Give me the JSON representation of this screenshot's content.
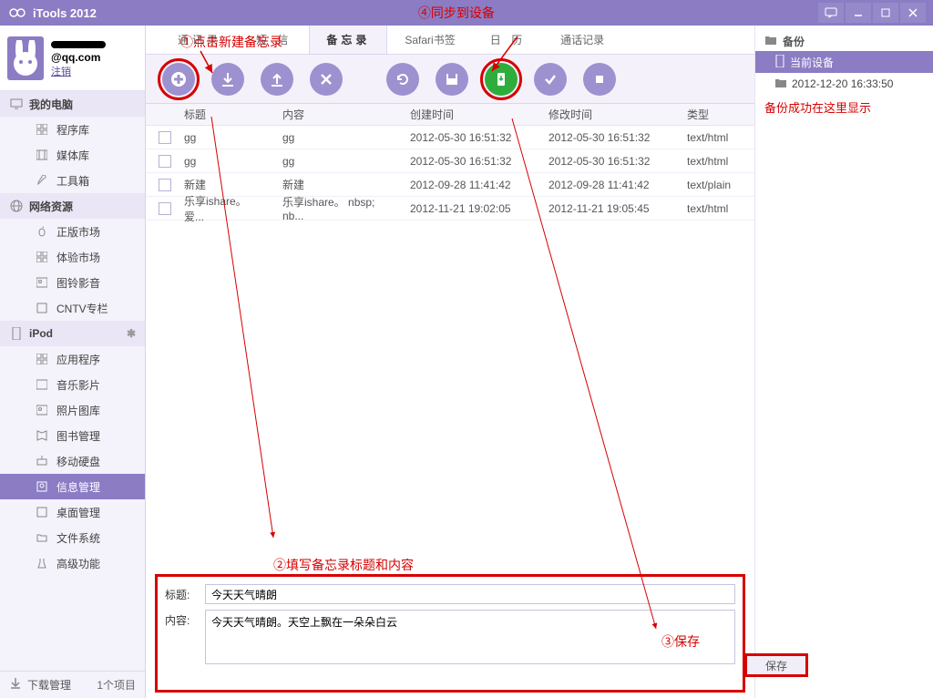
{
  "titlebar": {
    "app_name": "iTools 2012",
    "annot_sync": "④同步到设备"
  },
  "annotations": {
    "step1": "①点击新建备忘录",
    "step2": "②填写备忘录标题和内容",
    "step3": "③保存"
  },
  "user": {
    "email_suffix": "@qq.com",
    "logout": "注销"
  },
  "sidebar": {
    "computer_hdr": "我的电脑",
    "computer": [
      {
        "label": "程序库"
      },
      {
        "label": "媒体库"
      },
      {
        "label": "工具箱"
      }
    ],
    "net_hdr": "网络资源",
    "net": [
      {
        "label": "正版市场"
      },
      {
        "label": "体验市场"
      },
      {
        "label": "图铃影音"
      },
      {
        "label": "CNTV专栏"
      }
    ],
    "ipod_hdr": "iPod",
    "ipod": [
      {
        "label": "应用程序"
      },
      {
        "label": "音乐影片"
      },
      {
        "label": "照片图库"
      },
      {
        "label": "图书管理"
      },
      {
        "label": "移动硬盘"
      },
      {
        "label": "信息管理"
      },
      {
        "label": "桌面管理"
      },
      {
        "label": "文件系统"
      },
      {
        "label": "高级功能"
      }
    ],
    "footer": {
      "label": "下载管理",
      "count": "1个项目"
    }
  },
  "tabs": [
    {
      "label": "通讯录"
    },
    {
      "label": "短 信"
    },
    {
      "label": "备忘录"
    },
    {
      "label": "Safari书签"
    },
    {
      "label": "日 历"
    },
    {
      "label": "通话记录"
    }
  ],
  "table": {
    "headers": [
      "标题",
      "内容",
      "创建时间",
      "修改时间",
      "类型"
    ],
    "rows": [
      {
        "title": "gg",
        "content": "gg",
        "created": "2012-05-30 16:51:32",
        "modified": "2012-05-30 16:51:32",
        "type": "text/html"
      },
      {
        "title": "gg",
        "content": "gg",
        "created": "2012-05-30 16:51:32",
        "modified": "2012-05-30 16:51:32",
        "type": "text/html"
      },
      {
        "title": "新建",
        "content": "新建",
        "created": "2012-09-28 11:41:42",
        "modified": "2012-09-28 11:41:42",
        "type": "text/plain"
      },
      {
        "title": "乐享ishare。　爱...",
        "content": "乐享ishare。 nbsp; nb...",
        "created": "2012-11-21 19:02:05",
        "modified": "2012-11-21 19:05:45",
        "type": "text/html"
      }
    ]
  },
  "editor": {
    "title_label": "标题:",
    "content_label": "内容:",
    "title_value": "今天天气晴朗",
    "content_value": "今天天气晴朗。天空上飘在一朵朵白云",
    "save_label": "保存"
  },
  "right": {
    "header": "备份",
    "current": "当前设备",
    "backup_item": "2012-12-20 16:33:50",
    "success_text": "备份成功在这里显示"
  },
  "colors": {
    "accent": "#8b7cc4",
    "annot_red": "#d60000",
    "green": "#2ead3c"
  }
}
